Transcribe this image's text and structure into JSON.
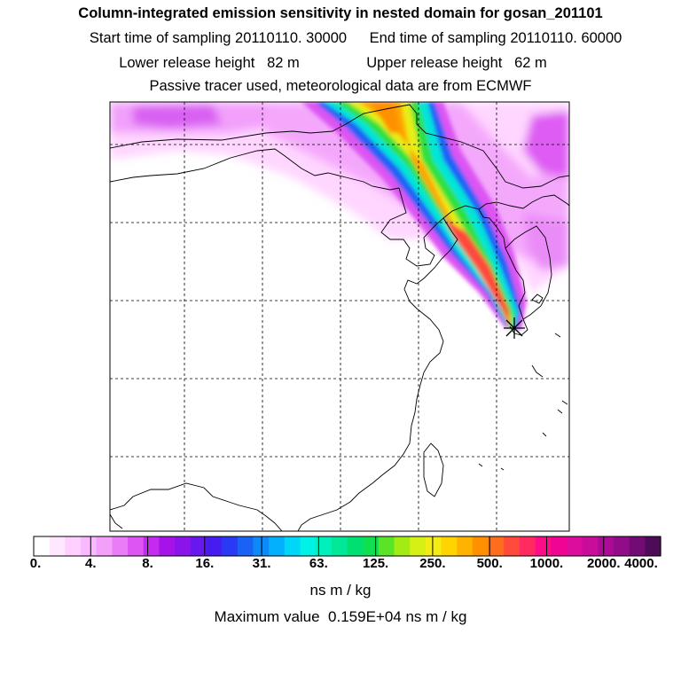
{
  "header": {
    "title": "Column-integrated emission sensitivity in nested domain for gosan_201101",
    "start_label": "Start time of sampling 20110110. 30000",
    "end_label": "End time of sampling 20110110. 60000",
    "lower_label": "Lower release height   82 m",
    "upper_label": "Upper release height   62 m",
    "tracer_label": "Passive tracer used, meteorological data are from ECMWF"
  },
  "colorbar": {
    "tick_labels": [
      "0.",
      "4.",
      "8.",
      "16.",
      "31.",
      "63.",
      "125.",
      "250.",
      "500.",
      "1000.",
      "2000.",
      "4000."
    ],
    "colors": [
      "#ffffff",
      "#ffe8ff",
      "#ffd0ff",
      "#f9b8ff",
      "#f3a0fb",
      "#ea7cf8",
      "#dd55f3",
      "#c42bef",
      "#a513e8",
      "#8a14ea",
      "#6818ee",
      "#461cf0",
      "#2a3af4",
      "#1a62f6",
      "#0e8af8",
      "#03b0fb",
      "#00d6f6",
      "#00f2e6",
      "#00f0bc",
      "#00e898",
      "#00e070",
      "#10e050",
      "#5ae428",
      "#a2ec14",
      "#d4f014",
      "#f4ec14",
      "#ffd400",
      "#ffb200",
      "#ff9000",
      "#ff6c1c",
      "#ff4a3c",
      "#ff2a60",
      "#ff0c88",
      "#f00494",
      "#dc0c9c",
      "#c80c9c",
      "#ae0a98",
      "#900c88",
      "#720c74",
      "#4e0c58"
    ],
    "unit_label": "ns m / kg"
  },
  "footer": {
    "max_label": "Maximum value  0.159E+04 ns m / kg"
  },
  "map": {
    "receptor_name": "gosan",
    "grid": "dashed"
  }
}
